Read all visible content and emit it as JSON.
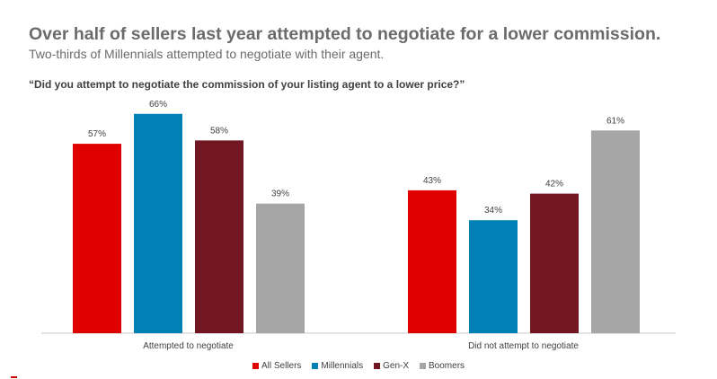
{
  "header": {
    "title": "Over half of sellers last year attempted to negotiate for a lower commission.",
    "subtitle": "Two-thirds of Millennials attempted to negotiate with their agent.",
    "question": "“Did you attempt to negotiate the commission of your listing agent to a lower price?”"
  },
  "colors": {
    "accent": "#cc0000",
    "axis": "#c8c8c8"
  },
  "chart_data": {
    "type": "bar",
    "title": "“Did you attempt to negotiate the commission of your listing agent to a lower price?”",
    "xlabel": "",
    "ylabel": "",
    "ylim": [
      0,
      70
    ],
    "grid": false,
    "legend_position": "bottom",
    "categories": [
      "Attempted to negotiate",
      "Did not attempt to negotiate"
    ],
    "series": [
      {
        "name": "All Sellers",
        "color": "#e00000",
        "values": [
          57,
          43
        ],
        "labels": [
          "57%",
          "43%"
        ]
      },
      {
        "name": "Millennials",
        "color": "#0080b4",
        "values": [
          66,
          34
        ],
        "labels": [
          "66%",
          "34%"
        ]
      },
      {
        "name": "Gen-X",
        "color": "#721622",
        "values": [
          58,
          42
        ],
        "labels": [
          "58%",
          "42%"
        ]
      },
      {
        "name": "Boomers",
        "color": "#a6a6a6",
        "values": [
          39,
          61
        ],
        "labels": [
          "39%",
          "61%"
        ]
      }
    ]
  }
}
